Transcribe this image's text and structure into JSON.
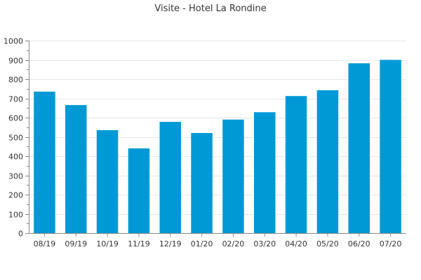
{
  "chart_data": {
    "type": "bar",
    "title": "Visite - Hotel La Rondine",
    "xlabel": "",
    "ylabel": "",
    "categories": [
      "08/19",
      "09/19",
      "10/19",
      "11/19",
      "12/19",
      "01/20",
      "02/20",
      "03/20",
      "04/20",
      "05/20",
      "06/20",
      "07/20"
    ],
    "values": [
      735,
      665,
      535,
      440,
      578,
      520,
      590,
      628,
      712,
      742,
      882,
      900
    ],
    "ylim": [
      0,
      1000
    ],
    "yticks": [
      0,
      100,
      200,
      300,
      400,
      500,
      600,
      700,
      800,
      900,
      1000
    ],
    "grid": true,
    "bar_color": "#0099d6"
  }
}
